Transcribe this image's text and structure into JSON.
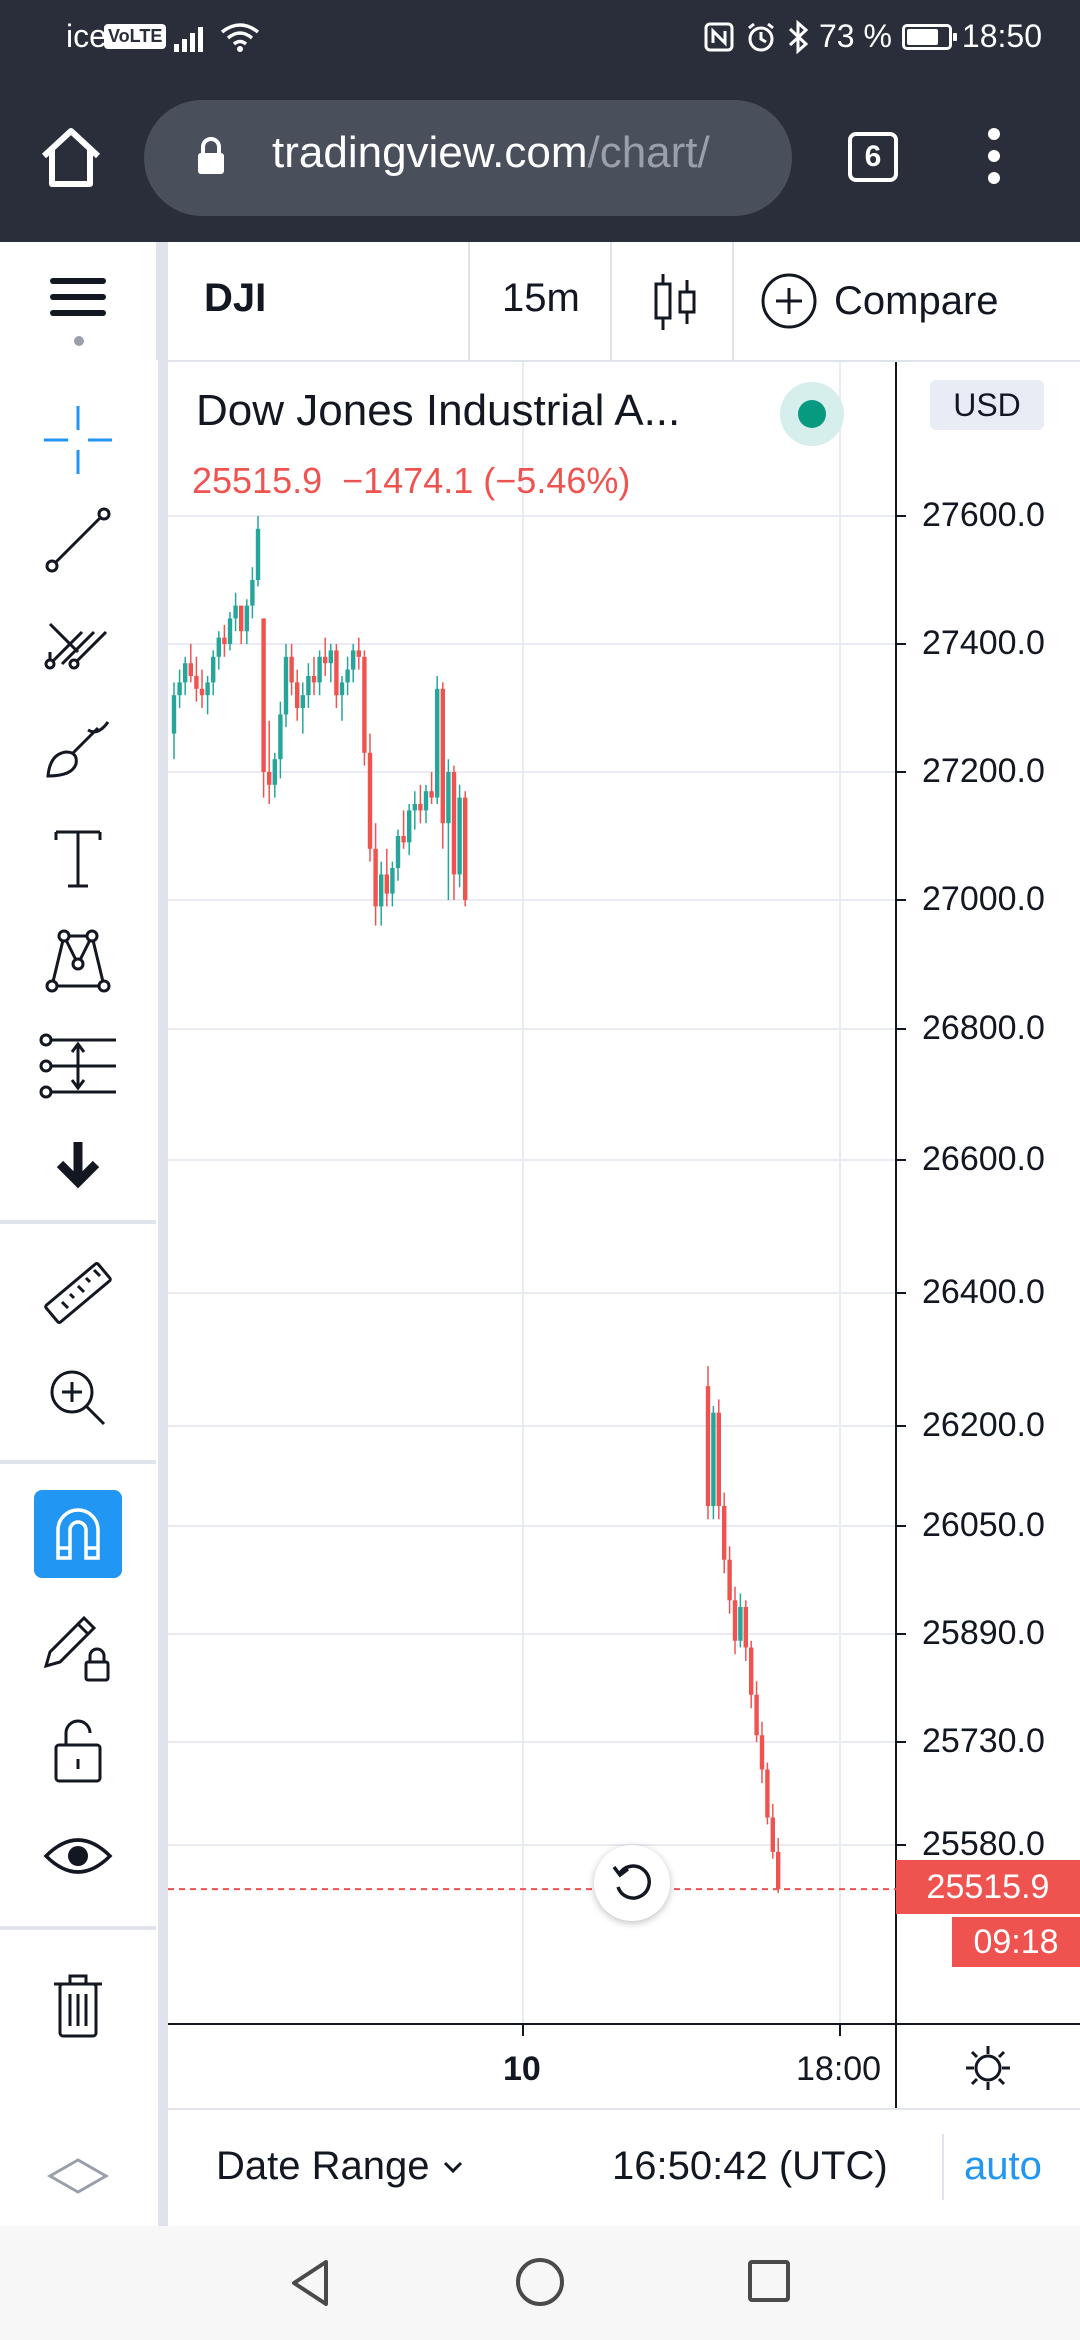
{
  "status_bar": {
    "carrier": "ice",
    "volte": "VoLTE",
    "battery": "73 %",
    "time": "18:50"
  },
  "browser": {
    "url_host": "tradingview.com",
    "url_path": "/chart/",
    "tab_count": "6"
  },
  "toolbar": {
    "symbol": "DJI",
    "interval": "15m",
    "compare_label": "Compare"
  },
  "legend": {
    "title": "Dow Jones Industrial A...",
    "last": "25515.9",
    "change": "−1474.1 (−5.46%)"
  },
  "price_axis": {
    "currency": "USD",
    "labels": [
      "27600.0",
      "27400.0",
      "27200.0",
      "27000.0",
      "26800.0",
      "26600.0",
      "26400.0",
      "26200.0",
      "26050.0",
      "25890.0",
      "25730.0",
      "25580.0"
    ],
    "last_price_tag": "25515.9",
    "countdown_tag": "09:18"
  },
  "time_axis": {
    "labels": [
      "10",
      "18:00"
    ]
  },
  "bottom_bar": {
    "date_range_label": "Date Range",
    "clock": "16:50:42 (UTC)",
    "auto_label": "auto"
  },
  "colors": {
    "up": "#26a69a",
    "down": "#ef5350",
    "accent": "#2196f3",
    "browser_bg": "#2a2e3b"
  },
  "chart_data": {
    "type": "candlestick",
    "title": "Dow Jones Industrial A...",
    "interval": "15m",
    "last_price": 25515.9,
    "ohlc": [
      [
        27260,
        27340,
        27220,
        27320
      ],
      [
        27320,
        27360,
        27300,
        27340
      ],
      [
        27340,
        27380,
        27320,
        27370
      ],
      [
        27370,
        27400,
        27340,
        27350
      ],
      [
        27350,
        27380,
        27310,
        27330
      ],
      [
        27330,
        27360,
        27300,
        27320
      ],
      [
        27320,
        27350,
        27290,
        27340
      ],
      [
        27340,
        27390,
        27320,
        27380
      ],
      [
        27380,
        27420,
        27360,
        27410
      ],
      [
        27410,
        27430,
        27380,
        27400
      ],
      [
        27400,
        27450,
        27390,
        27440
      ],
      [
        27440,
        27480,
        27420,
        27460
      ],
      [
        27460,
        27460,
        27400,
        27420
      ],
      [
        27420,
        27470,
        27400,
        27460
      ],
      [
        27460,
        27520,
        27440,
        27500
      ],
      [
        27500,
        27600,
        27490,
        27580
      ],
      [
        27440,
        27440,
        27160,
        27200
      ],
      [
        27200,
        27280,
        27150,
        27180
      ],
      [
        27180,
        27230,
        27160,
        27220
      ],
      [
        27220,
        27310,
        27190,
        27290
      ],
      [
        27290,
        27400,
        27270,
        27380
      ],
      [
        27380,
        27400,
        27320,
        27340
      ],
      [
        27340,
        27360,
        27280,
        27300
      ],
      [
        27300,
        27340,
        27260,
        27320
      ],
      [
        27320,
        27370,
        27300,
        27350
      ],
      [
        27350,
        27380,
        27320,
        27340
      ],
      [
        27340,
        27390,
        27320,
        27380
      ],
      [
        27380,
        27410,
        27350,
        27370
      ],
      [
        27370,
        27400,
        27340,
        27390
      ],
      [
        27390,
        27400,
        27300,
        27320
      ],
      [
        27320,
        27350,
        27280,
        27340
      ],
      [
        27340,
        27380,
        27320,
        27360
      ],
      [
        27360,
        27400,
        27340,
        27390
      ],
      [
        27390,
        27410,
        27360,
        27380
      ],
      [
        27380,
        27390,
        27210,
        27230
      ],
      [
        27230,
        27260,
        27060,
        27080
      ],
      [
        27080,
        27120,
        26960,
        26990
      ],
      [
        26990,
        27060,
        26960,
        27040
      ],
      [
        27040,
        27080,
        26990,
        27010
      ],
      [
        27010,
        27060,
        26990,
        27050
      ],
      [
        27050,
        27110,
        27030,
        27100
      ],
      [
        27100,
        27140,
        27080,
        27090
      ],
      [
        27090,
        27150,
        27070,
        27140
      ],
      [
        27140,
        27170,
        27110,
        27150
      ],
      [
        27150,
        27180,
        27120,
        27140
      ],
      [
        27140,
        27180,
        27120,
        27170
      ],
      [
        27170,
        27200,
        27150,
        27160
      ],
      [
        27160,
        27350,
        27150,
        27330
      ],
      [
        27330,
        27340,
        27080,
        27120
      ],
      [
        27120,
        27220,
        27000,
        27200
      ],
      [
        27200,
        27210,
        27000,
        27040
      ],
      [
        27040,
        27180,
        27020,
        27160
      ],
      [
        27160,
        27170,
        26990,
        27000
      ],
      [
        26260,
        26290,
        26060,
        26080
      ],
      [
        26080,
        26230,
        26060,
        26220
      ],
      [
        26220,
        26240,
        26060,
        26080
      ],
      [
        26080,
        26100,
        25980,
        26000
      ],
      [
        26000,
        26020,
        25920,
        25940
      ],
      [
        25940,
        25960,
        25860,
        25880
      ],
      [
        25880,
        25950,
        25870,
        25930
      ],
      [
        25930,
        25940,
        25850,
        25870
      ],
      [
        25870,
        25880,
        25780,
        25800
      ],
      [
        25800,
        25820,
        25730,
        25740
      ],
      [
        25740,
        25760,
        25670,
        25690
      ],
      [
        25690,
        25700,
        25610,
        25620
      ],
      [
        25620,
        25640,
        25560,
        25570
      ],
      [
        25570,
        25590,
        25510,
        25516
      ]
    ]
  }
}
